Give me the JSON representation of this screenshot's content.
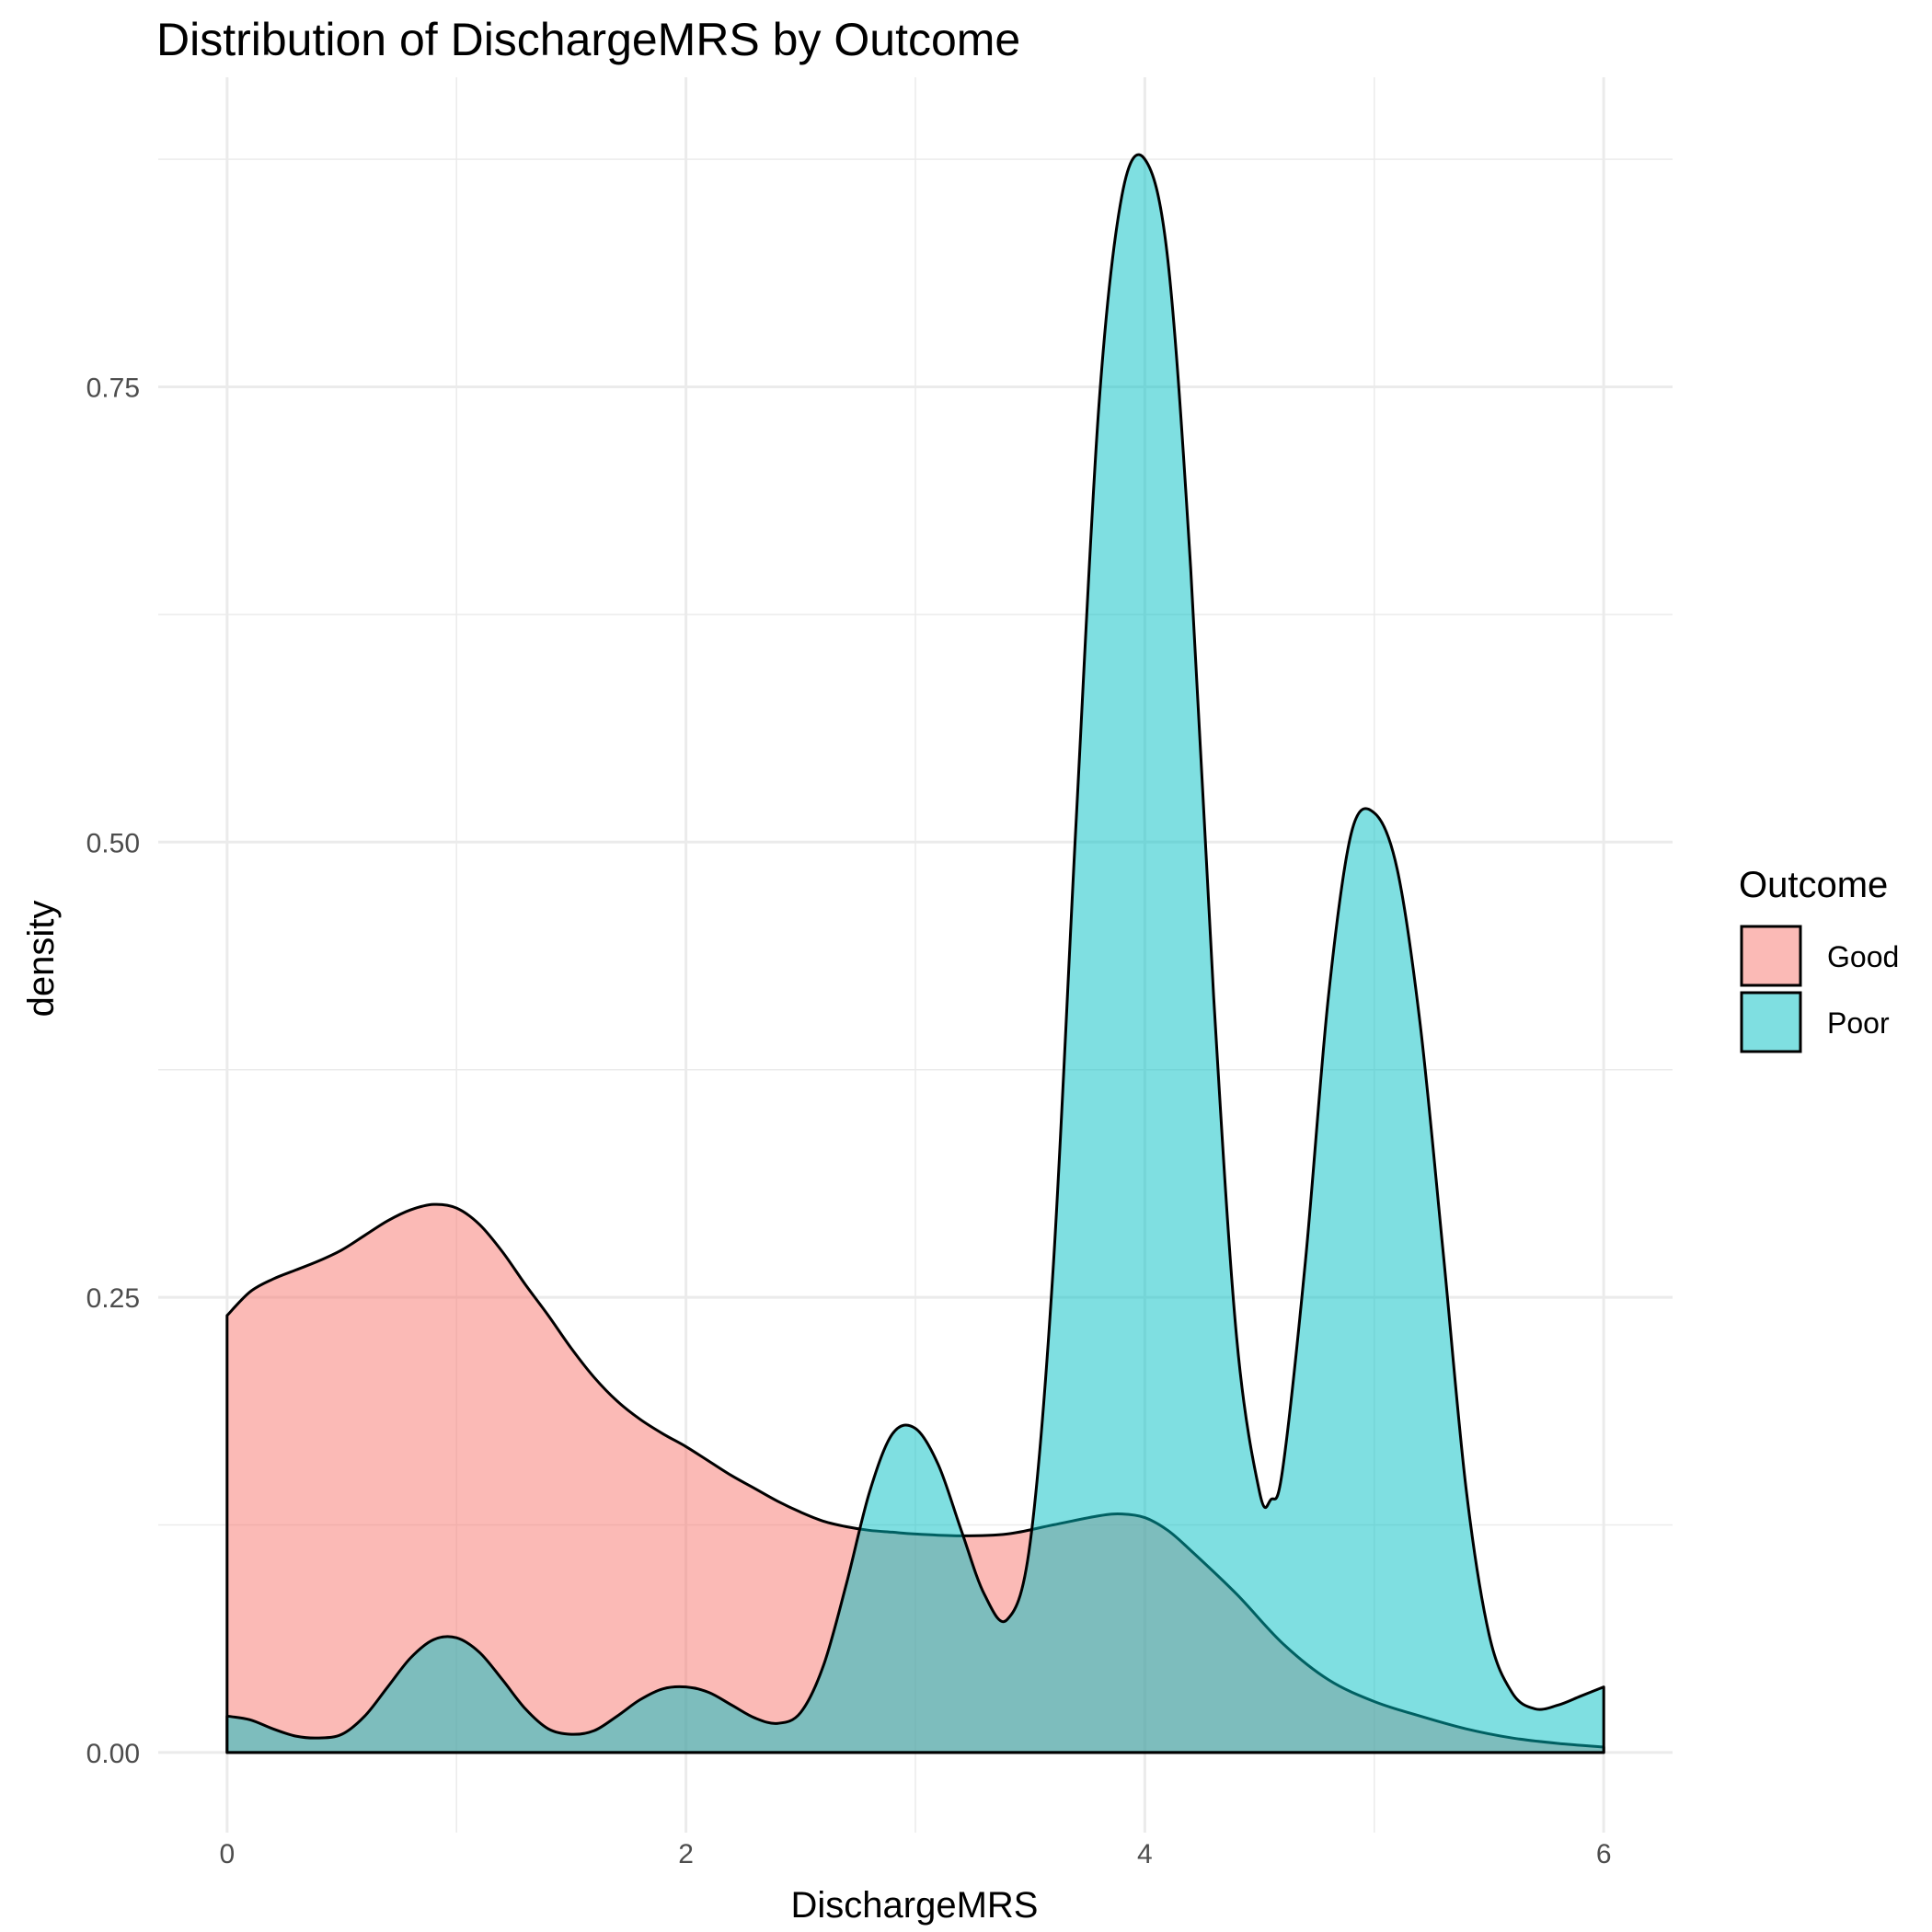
{
  "chart_data": {
    "type": "area",
    "subtype": "density",
    "title": "Distribution of DischargeMRS by Outcome",
    "xlabel": "DischargeMRS",
    "ylabel": "density",
    "xlim": [
      -0.3,
      6.3
    ],
    "ylim": [
      -0.044,
      0.92
    ],
    "x_ticks": [
      0,
      2,
      4,
      6
    ],
    "x_tick_labels": [
      "0",
      "2",
      "4",
      "6"
    ],
    "x_minor_ticks": [
      1,
      3,
      5
    ],
    "y_ticks": [
      0,
      0.25,
      0.5,
      0.75
    ],
    "y_tick_labels": [
      "0.00",
      "0.25",
      "0.50",
      "0.75"
    ],
    "y_minor_ticks": [
      0.125,
      0.375,
      0.625,
      0.875
    ],
    "grid": true,
    "legend": {
      "title": "Outcome",
      "position": "right",
      "entries": [
        {
          "label": "Good",
          "color": "#F8766D"
        },
        {
          "label": "Poor",
          "color": "#00BFC4"
        }
      ]
    },
    "fill_opacity": 0.5,
    "series": [
      {
        "name": "Good",
        "color": "#F8766D",
        "x": [
          0,
          0.1,
          0.2,
          0.3,
          0.4,
          0.5,
          0.6,
          0.7,
          0.8,
          0.9,
          1.0,
          1.1,
          1.2,
          1.3,
          1.4,
          1.5,
          1.6,
          1.7,
          1.8,
          1.9,
          2.0,
          2.1,
          2.2,
          2.3,
          2.4,
          2.5,
          2.6,
          2.7,
          2.8,
          2.9,
          3.0,
          3.2,
          3.4,
          3.6,
          3.8,
          3.9,
          4.0,
          4.1,
          4.2,
          4.4,
          4.6,
          4.8,
          5.0,
          5.2,
          5.4,
          5.6,
          5.8,
          6.0
        ],
        "values": [
          0.24,
          0.253,
          0.26,
          0.265,
          0.27,
          0.276,
          0.284,
          0.292,
          0.298,
          0.301,
          0.299,
          0.29,
          0.275,
          0.257,
          0.24,
          0.222,
          0.206,
          0.193,
          0.183,
          0.175,
          0.168,
          0.16,
          0.152,
          0.145,
          0.138,
          0.132,
          0.127,
          0.124,
          0.122,
          0.121,
          0.12,
          0.119,
          0.12,
          0.125,
          0.13,
          0.131,
          0.129,
          0.122,
          0.111,
          0.087,
          0.06,
          0.04,
          0.028,
          0.02,
          0.013,
          0.008,
          0.005,
          0.003
        ]
      },
      {
        "name": "Poor",
        "color": "#00BFC4",
        "x": [
          0,
          0.1,
          0.2,
          0.3,
          0.4,
          0.5,
          0.6,
          0.7,
          0.8,
          0.9,
          1.0,
          1.1,
          1.2,
          1.3,
          1.4,
          1.5,
          1.6,
          1.7,
          1.8,
          1.9,
          2.0,
          2.1,
          2.2,
          2.3,
          2.4,
          2.5,
          2.6,
          2.7,
          2.8,
          2.9,
          3.0,
          3.1,
          3.2,
          3.3,
          3.4,
          3.5,
          3.6,
          3.7,
          3.8,
          3.9,
          4.0,
          4.1,
          4.2,
          4.3,
          4.4,
          4.5,
          4.55,
          4.6,
          4.7,
          4.8,
          4.9,
          5.0,
          5.1,
          5.2,
          5.3,
          5.4,
          5.5,
          5.6,
          5.7,
          5.8,
          5.9,
          6.0
        ],
        "values": [
          0.02,
          0.018,
          0.013,
          0.009,
          0.008,
          0.01,
          0.02,
          0.036,
          0.052,
          0.062,
          0.063,
          0.055,
          0.04,
          0.024,
          0.013,
          0.01,
          0.012,
          0.02,
          0.029,
          0.035,
          0.036,
          0.033,
          0.026,
          0.019,
          0.016,
          0.022,
          0.048,
          0.093,
          0.143,
          0.175,
          0.178,
          0.158,
          0.122,
          0.087,
          0.073,
          0.115,
          0.265,
          0.51,
          0.74,
          0.855,
          0.875,
          0.82,
          0.65,
          0.415,
          0.228,
          0.143,
          0.139,
          0.155,
          0.27,
          0.415,
          0.505,
          0.516,
          0.485,
          0.4,
          0.275,
          0.145,
          0.065,
          0.033,
          0.024,
          0.026,
          0.031,
          0.036
        ]
      }
    ]
  }
}
